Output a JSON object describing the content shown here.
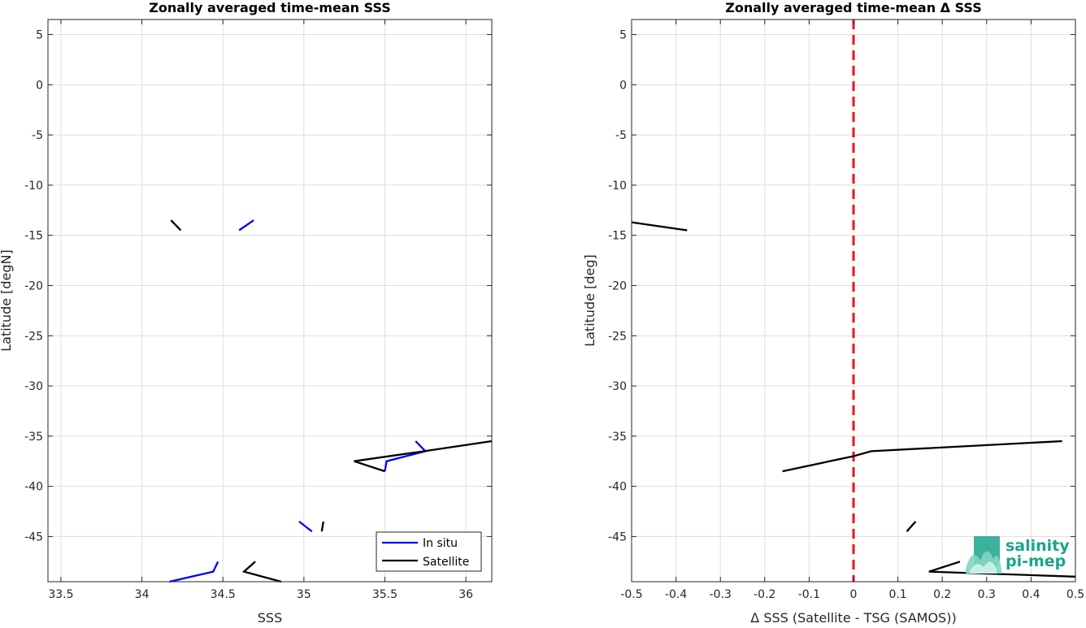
{
  "chart_data": [
    {
      "type": "line",
      "title": "Zonally averaged time-mean SSS",
      "xlabel": "SSS",
      "ylabel": "Latitude [degN]",
      "xlim": [
        33.42,
        36.16
      ],
      "ylim": [
        -49.5,
        6.5
      ],
      "xticks": [
        33.5,
        34,
        34.5,
        35,
        35.5,
        36
      ],
      "xticklabels": [
        "33.5",
        "34",
        "34.5",
        "35",
        "35.5",
        "36"
      ],
      "yticks": [
        5,
        0,
        -5,
        -10,
        -15,
        -20,
        -25,
        -30,
        -35,
        -40,
        -45
      ],
      "yticklabels": [
        "5",
        "0",
        "-5",
        "-10",
        "-15",
        "-20",
        "-25",
        "-30",
        "-35",
        "-40",
        "-45"
      ],
      "grid": true,
      "legend": "bottom-right",
      "series": [
        {
          "name": "In situ",
          "color": "#0000ff",
          "segments": [
            [
              [
                34.6,
                -14.5
              ],
              [
                34.69,
                -13.5
              ]
            ],
            [
              [
                35.69,
                -35.5
              ],
              [
                35.75,
                -36.5
              ],
              [
                35.51,
                -37.5
              ],
              [
                35.5,
                -38.5
              ]
            ],
            [
              [
                34.97,
                -43.5
              ],
              [
                35.05,
                -44.5
              ]
            ],
            [
              [
                34.47,
                -47.5
              ],
              [
                34.44,
                -48.5
              ],
              [
                34.17,
                -49.5
              ]
            ]
          ]
        },
        {
          "name": "Satellite",
          "color": "#000000",
          "segments": [
            [
              [
                34.18,
                -13.5
              ],
              [
                34.24,
                -14.5
              ]
            ],
            [
              [
                36.16,
                -35.5
              ],
              [
                35.7,
                -36.6
              ],
              [
                35.31,
                -37.5
              ],
              [
                35.5,
                -38.5
              ]
            ],
            [
              [
                35.12,
                -43.5
              ],
              [
                35.11,
                -44.5
              ]
            ],
            [
              [
                34.7,
                -47.5
              ],
              [
                34.63,
                -48.5
              ],
              [
                34.86,
                -49.5
              ]
            ]
          ]
        }
      ]
    },
    {
      "type": "line",
      "title": "Zonally averaged time-mean Δ SSS",
      "xlabel": "Δ SSS (Satellite - TSG (SAMOS))",
      "ylabel": "Latitude [deg]",
      "xlim": [
        -0.5,
        0.5
      ],
      "ylim": [
        -49.5,
        6.5
      ],
      "xticks": [
        -0.5,
        -0.4,
        -0.3,
        -0.2,
        -0.1,
        0,
        0.1,
        0.2,
        0.3,
        0.4,
        0.5
      ],
      "xticklabels": [
        "-0.5",
        "-0.4",
        "-0.3",
        "-0.2",
        "-0.1",
        "0",
        "0.1",
        "0.2",
        "0.3",
        "0.4",
        "0.5"
      ],
      "yticks": [
        5,
        0,
        -5,
        -10,
        -15,
        -20,
        -25,
        -30,
        -35,
        -40,
        -45
      ],
      "yticklabels": [
        "5",
        "0",
        "-5",
        "-10",
        "-15",
        "-20",
        "-25",
        "-30",
        "-35",
        "-40",
        "-45"
      ],
      "grid": true,
      "zero_line_color": "#e8141e",
      "series": [
        {
          "color": "#000000",
          "segments": [
            [
              [
                -0.5,
                -13.7
              ],
              [
                -0.375,
                -14.5
              ]
            ],
            [
              [
                0.47,
                -35.5
              ],
              [
                0.04,
                -36.5
              ],
              [
                0.0,
                -37.0
              ],
              [
                -0.16,
                -38.5
              ]
            ],
            [
              [
                0.14,
                -43.5
              ],
              [
                0.12,
                -44.5
              ]
            ],
            [
              [
                0.24,
                -47.5
              ],
              [
                0.17,
                -48.5
              ],
              [
                0.5,
                -49.0
              ]
            ]
          ]
        }
      ]
    }
  ],
  "logo": {
    "line1": "salinity",
    "line2": "pi-mep",
    "color": "#1aa58c"
  }
}
